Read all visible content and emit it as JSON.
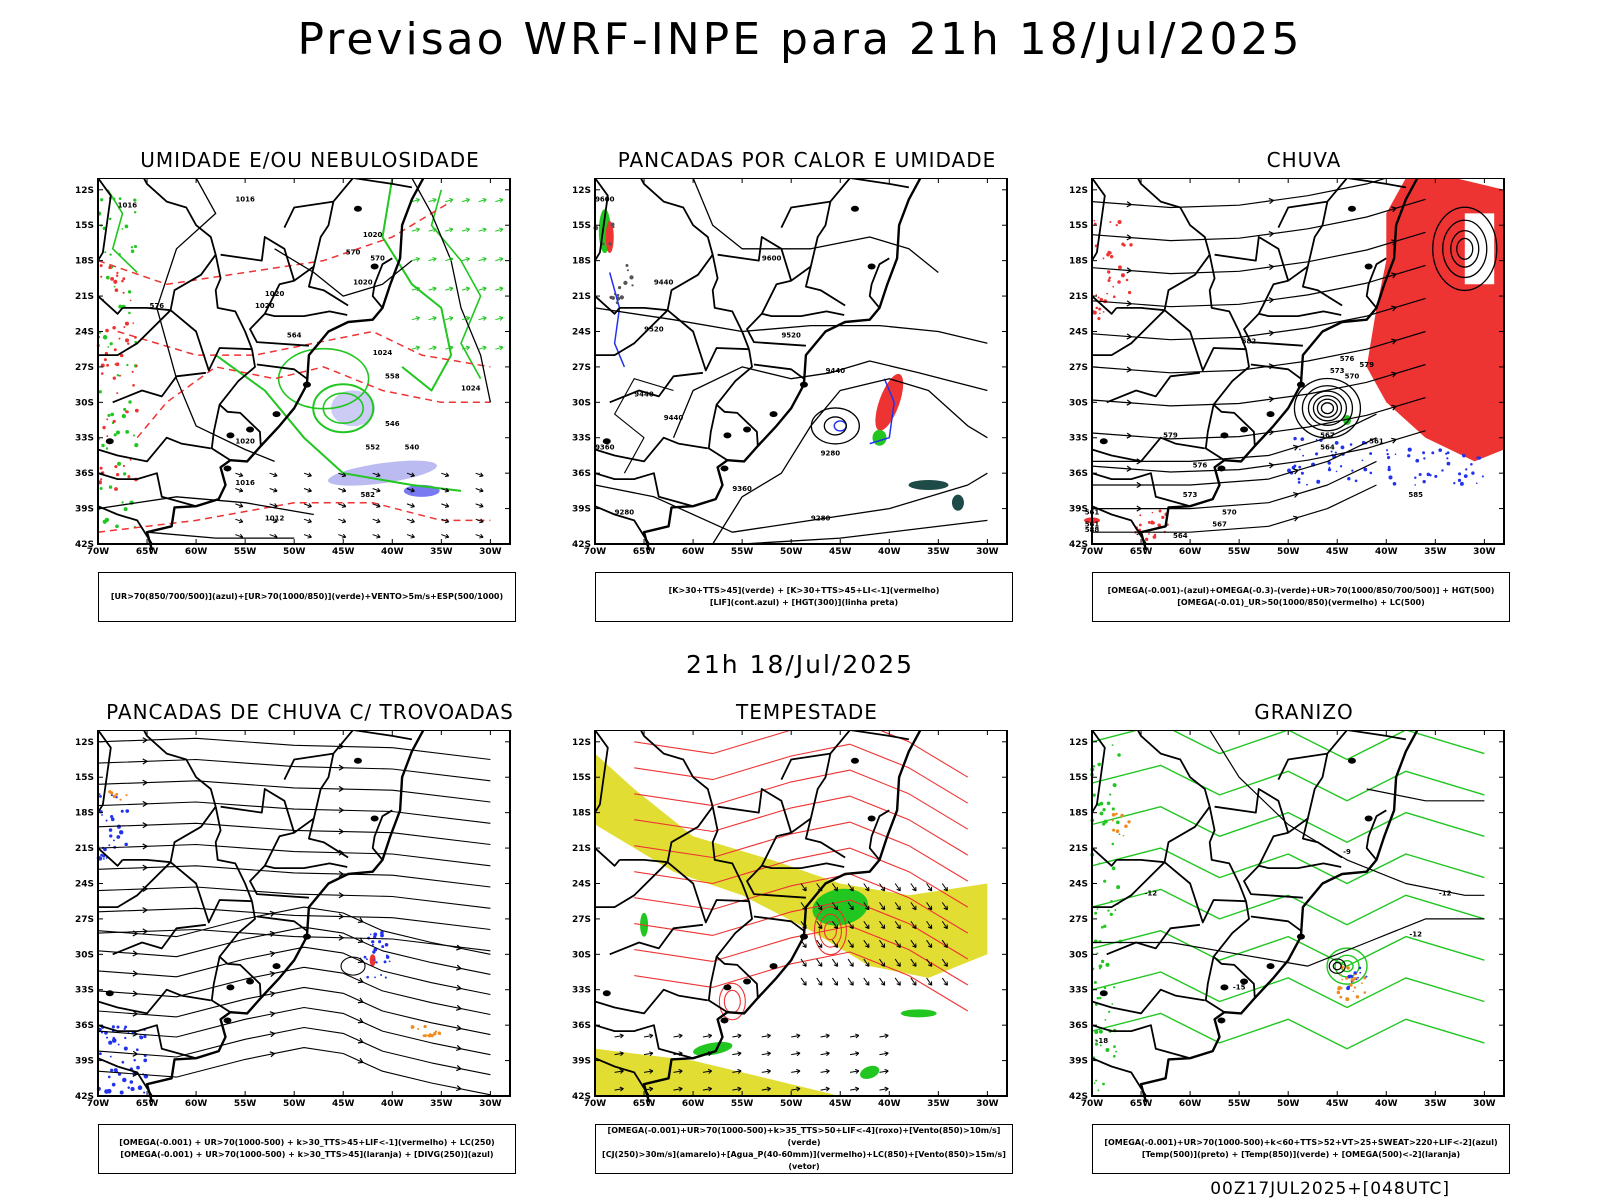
{
  "title": "Previsao WRF-INPE  para 21h 18/Jul/2025",
  "mid_title": "21h 18/Jul/2025",
  "footer": "00Z17JUL2025+[048UTC]",
  "colors": {
    "green": "#21c621",
    "red": "#ee3333",
    "blue": "#2233ee",
    "lavender": "#aaaaee",
    "yellow": "#e2dd33",
    "orange": "#f08a1a",
    "darkteal": "#1e4a48"
  },
  "lat_labels": [
    "12S",
    "15S",
    "18S",
    "21S",
    "24S",
    "27S",
    "30S",
    "33S",
    "36S",
    "39S",
    "42S"
  ],
  "lon_labels": [
    "70W",
    "65W",
    "60W",
    "55W",
    "50W",
    "45W",
    "40W",
    "35W",
    "30W"
  ],
  "panels": [
    {
      "title": "UMIDADE E/OU NEBULOSIDADE",
      "legend": [
        "[UR>70(850/700/500)](azul)+[UR>70(1000/850)](verde)+VENTO>5m/s+ESP(500/1000)"
      ],
      "contour_labels": [
        "1016",
        "1016",
        "1020",
        "1020",
        "1020",
        "1020",
        "1024",
        "1012",
        "1016",
        "582",
        "570",
        "570",
        "564",
        "558",
        "552",
        "546",
        "540",
        "576",
        "1024",
        "1020"
      ]
    },
    {
      "title": "PANCADAS POR CALOR E UMIDADE",
      "legend": [
        "[K>30+TTS>45](verde) + [K>30+TTS>45+LI<-1](vermelho)",
        "[LIF](cont.azul) + [HGT(300)](linha preta)"
      ],
      "contour_labels": [
        "9600",
        "9600",
        "9440",
        "9520",
        "9520",
        "9440",
        "9440",
        "9360",
        "9360",
        "9280",
        "9280",
        "9280",
        "9440"
      ]
    },
    {
      "title": "CHUVA",
      "legend": [
        "[OMEGA(-0.001)-(azul)+OMEGA(-0.3)-(verde)+UR>70(1000/850/700/500)] + HGT(500)",
        "[OMEGA(-0.01)_UR>50(1000/850)(vermelho) + LC(500)"
      ],
      "contour_labels": [
        "582",
        "579",
        "576",
        "573",
        "570",
        "567",
        "564",
        "561",
        "576",
        "579",
        "573",
        "570",
        "567",
        "564",
        "561",
        "561",
        "585",
        "588"
      ]
    },
    {
      "title": "PANCADAS DE CHUVA C/ TROVOADAS",
      "legend": [
        "[OMEGA(-0.001) + UR>70(1000-500) + k>30_TTS>45+LIF<-1](vermelho) + LC(250)",
        "[OMEGA(-0.001) + UR>70(1000-500) + k>30_TTS>45](laranja) + [DIVG(250)](azul)"
      ],
      "contour_labels": []
    },
    {
      "title": "TEMPESTADE",
      "legend": [
        "[OMEGA(-0.001)+UR>70(1000-500)+k>35_TTS>50+LIF<-4](roxo)+[Vento(850)>10m/s](verde)",
        "[CJ(250)>30m/s](amarelo)+[Agua_P(40-60mm)](vermelho)+LC(850)+[Vento(850)>15m/s](vetor)"
      ],
      "contour_labels": []
    },
    {
      "title": "GRANIZO",
      "legend": [
        "[OMEGA(-0.001)+UR>70(1000-500)+k<60+TTS>52+VT>25+SWEAT>220+LIF<-2](azul)",
        "[Temp(500)](preto) + [Temp(850)](verde) + [OMEGA(500)<-2](laranja)"
      ],
      "contour_labels": [
        "-12",
        "-12",
        "-15",
        "-18",
        "-12",
        "-9"
      ]
    }
  ]
}
